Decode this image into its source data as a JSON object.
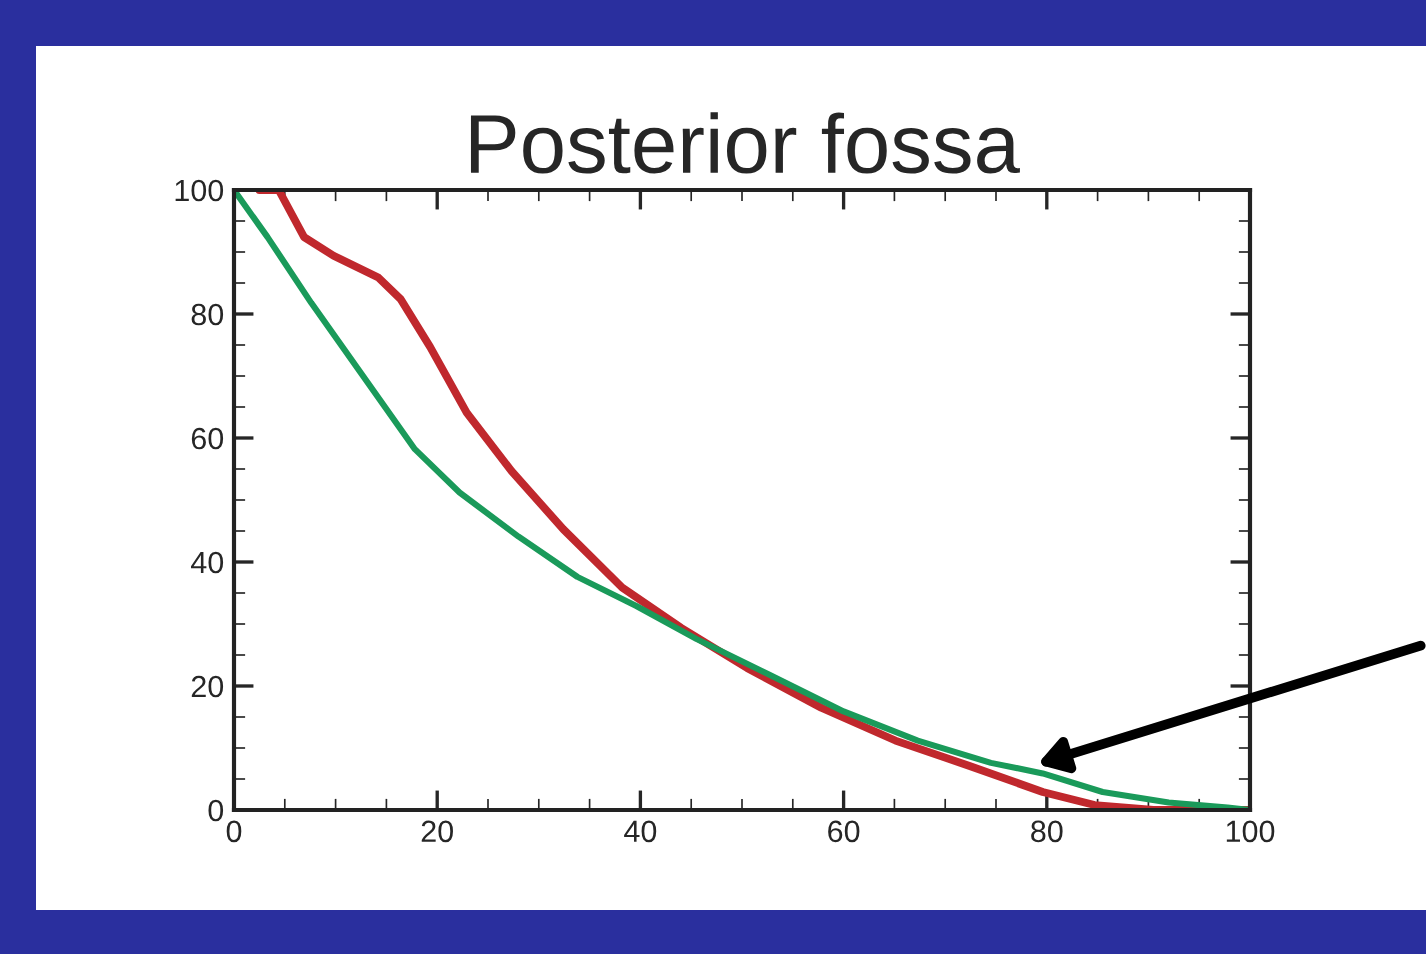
{
  "chart_data": {
    "type": "line",
    "title": "Posterior fossa",
    "xlim": [
      0,
      100
    ],
    "ylim": [
      0,
      100
    ],
    "xticks": [
      0,
      20,
      40,
      60,
      80,
      100
    ],
    "yticks": [
      0,
      20,
      40,
      60,
      80,
      100
    ],
    "grid": false,
    "marker": "none",
    "line_style": "solid",
    "series": [
      {
        "color": "#c0282d",
        "x": [
          2.5,
          4.4,
          6.9,
          9.8,
          14.2,
          16.4,
          19.3,
          22.9,
          27.3,
          32.4,
          38.2,
          44,
          50.5,
          57.8,
          65.1,
          72.4,
          79.6,
          84.7,
          90.5,
          100
        ],
        "values": [
          100,
          100,
          92.4,
          89.4,
          85.9,
          82.4,
          74.7,
          64.1,
          54.7,
          45.3,
          35.9,
          29.4,
          22.9,
          16.5,
          11.2,
          7.1,
          2.9,
          0.8,
          0,
          0
        ]
      },
      {
        "color": "#1a9a5a",
        "x": [
          0,
          3.3,
          7.6,
          12.7,
          17.8,
          22.2,
          28,
          33.8,
          39.6,
          45.5,
          52.7,
          60,
          67.3,
          74.5,
          79.6,
          85.5,
          92,
          97.8,
          100
        ],
        "values": [
          100,
          92.4,
          81.8,
          70,
          58.2,
          51.2,
          44.1,
          37.6,
          32.9,
          27.6,
          21.8,
          15.9,
          11.2,
          7.6,
          5.9,
          2.9,
          1.2,
          0.4,
          0
        ]
      }
    ]
  }
}
